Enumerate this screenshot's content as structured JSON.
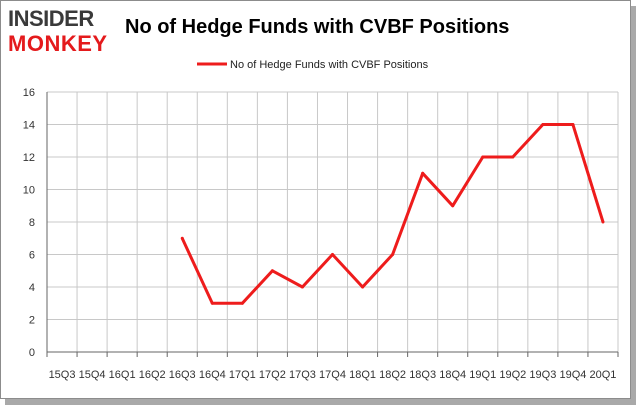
{
  "brand": {
    "line1": "INSIDER",
    "line2": "MONKEY",
    "accent": "#e41a1c",
    "dark": "#3a3a3a"
  },
  "chart_data": {
    "type": "line",
    "title": "No of Hedge Funds with CVBF Positions",
    "xlabel": "",
    "ylabel": "",
    "ylim": [
      0,
      16
    ],
    "yticks": [
      0,
      2,
      4,
      6,
      8,
      10,
      12,
      14,
      16
    ],
    "grid": true,
    "legend": "top-center",
    "categories": [
      "15Q3",
      "15Q4",
      "16Q1",
      "16Q2",
      "16Q3",
      "16Q4",
      "17Q1",
      "17Q2",
      "17Q3",
      "17Q4",
      "18Q1",
      "18Q2",
      "18Q3",
      "18Q4",
      "19Q1",
      "19Q2",
      "19Q3",
      "19Q4",
      "20Q1"
    ],
    "series": [
      {
        "name": "No of Hedge Funds with CVBF Positions",
        "color": "#ee1c1c",
        "values": [
          null,
          null,
          null,
          null,
          7,
          3,
          3,
          5,
          4,
          6,
          4,
          6,
          11,
          9,
          12,
          12,
          14,
          14,
          8
        ]
      }
    ]
  }
}
